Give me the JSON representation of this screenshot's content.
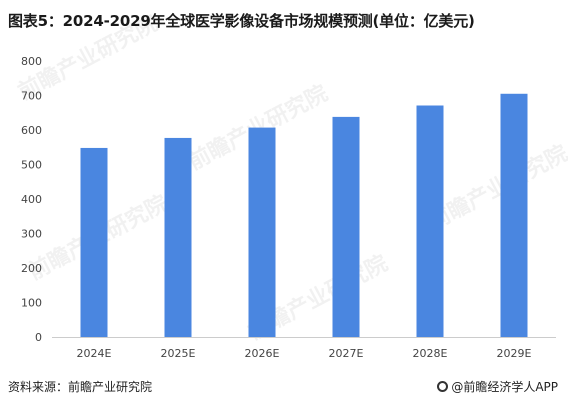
{
  "title": "图表5：2024-2029年全球医学影像设备市场规模预测(单位：亿美元)",
  "chart_data": {
    "type": "bar",
    "categories": [
      "2024E",
      "2025E",
      "2026E",
      "2027E",
      "2028E",
      "2029E"
    ],
    "values": [
      548,
      577,
      607,
      638,
      671,
      705
    ],
    "ylim": [
      0,
      800
    ],
    "yticks": [
      0,
      100,
      200,
      300,
      400,
      500,
      600,
      700,
      800
    ],
    "bar_color": "#4a86e0",
    "grid": false
  },
  "source": "资料来源：前瞻产业研究院",
  "brand": "@前瞻经济学人APP",
  "watermark": "前瞻产业研究院"
}
